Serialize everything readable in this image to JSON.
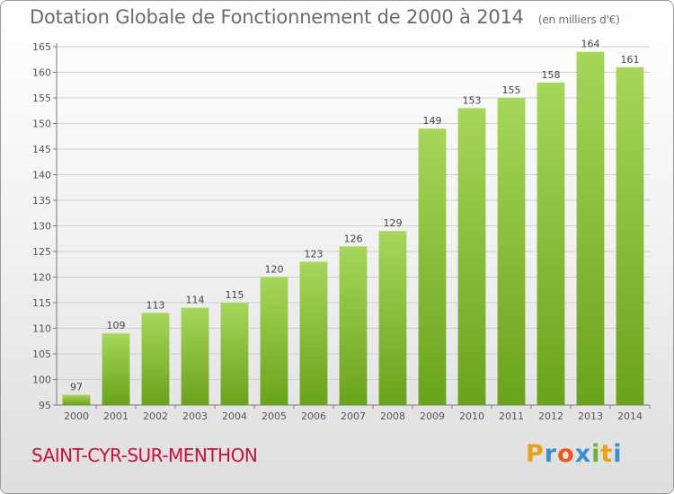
{
  "title": "Dotation Globale de Fonctionnement de 2000 à 2014",
  "unit": "(en milliers d'€)",
  "commune": "SAINT-CYR-SUR-MENTHON",
  "logo": {
    "letters": [
      "P",
      "r",
      "o",
      "x",
      "i",
      "t",
      "i"
    ],
    "colors": [
      "#e8a21a",
      "#3a8fd0",
      "#e85a1a",
      "#3a8fd0",
      "#6ab23a",
      "#e8a21a",
      "#3a8fd0"
    ]
  },
  "colors": {
    "bar_light": "#a6d65a",
    "bar_dark": "#6aa21c",
    "grid": "#cfcfcf",
    "axis": "#777777",
    "commune": "#c8103c"
  },
  "chart_data": {
    "type": "bar",
    "title": "Dotation Globale de Fonctionnement de 2000 à 2014",
    "subtitle": "(en milliers d'€)",
    "categories": [
      "2000",
      "2001",
      "2002",
      "2003",
      "2004",
      "2005",
      "2006",
      "2007",
      "2008",
      "2009",
      "2010",
      "2011",
      "2012",
      "2013",
      "2014"
    ],
    "values": [
      97,
      109,
      113,
      114,
      115,
      120,
      123,
      126,
      129,
      149,
      153,
      155,
      158,
      164,
      161
    ],
    "yticks": [
      95,
      100,
      105,
      110,
      115,
      120,
      125,
      130,
      135,
      140,
      145,
      150,
      155,
      160,
      165
    ],
    "ylim": [
      95,
      165
    ],
    "xlabel": "",
    "ylabel": "",
    "grid": true
  }
}
